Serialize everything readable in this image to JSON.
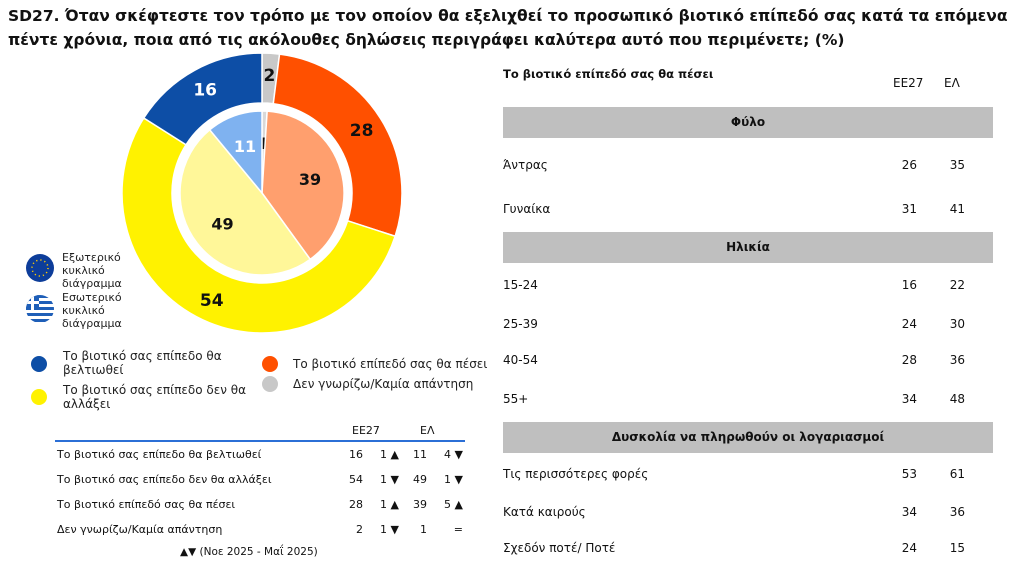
{
  "title": "SD27. Όταν σκέφτεστε τον τρόπο με τον οποίον θα εξελιχθεί το προσωπικό βιοτικό επίπεδό σας κατά τα επόμενα πέντε χρόνια, ποια από τις ακόλουθες δηλώσεις περιγράφει καλύτερα αυτό που περιμένετε; (%)",
  "chart_data": {
    "type": "pie",
    "categories": [
      "Το βιοτικό σας επίπεδο θα βελτιωθεί",
      "Το βιοτικό σας επίπεδο δεν θα αλλάξει",
      "Το βιοτικό επίπεδό σας θα πέσει",
      "Δεν γνωρίζω/Καμία απάντηση"
    ],
    "colors": [
      "#0d4ea6",
      "#fff200",
      "#ff5000",
      "#c8c8c8"
    ],
    "inner_colors": [
      "#7fb2f0",
      "#fff799",
      "#ff9f6e",
      "#d9d9d9"
    ],
    "series": [
      {
        "name": "Εξωτερικό κυκλικό διάγραμμα",
        "values": [
          16,
          54,
          28,
          2
        ]
      },
      {
        "name": "Εσωτερικό κυκλικό διάγραμμα",
        "values": [
          11,
          49,
          39,
          1
        ]
      }
    ],
    "legend": "left"
  },
  "legend_flags": [
    "Εξωτερικό κυκλικό διάγραμμα",
    "Εσωτερικό κυκλικό διάγραμμα"
  ],
  "bottom_table": {
    "headers": [
      "ΕΕ27",
      "ΕΛ"
    ],
    "rows": [
      {
        "label": "Το βιοτικό σας επίπεδο θα βελτιωθεί",
        "eu": "16",
        "eu_ch": "1 ▲",
        "el": "11",
        "el_ch": "4 ▼"
      },
      {
        "label": "Το βιοτικό σας επίπεδο δεν θα αλλάξει",
        "eu": "54",
        "eu_ch": "1 ▼",
        "el": "49",
        "el_ch": "1 ▼"
      },
      {
        "label": "Το βιοτικό επίπεδό σας θα πέσει",
        "eu": "28",
        "eu_ch": "1 ▲",
        "el": "39",
        "el_ch": "5 ▲"
      },
      {
        "label": "Δεν γνωρίζω/Καμία απάντηση",
        "eu": "2",
        "eu_ch": "1 ▼",
        "el": "1",
        "el_ch": "="
      }
    ],
    "footnote": "▲▼ (Νοε 2025 - Μαΐ 2025)"
  },
  "right": {
    "heading": "Το βιοτικό επίπεδό σας θα πέσει",
    "col_eu": "ΕΕ27",
    "col_el": "ΕΛ",
    "sections": [
      {
        "title": "Φύλο",
        "rows": [
          {
            "label": "Άντρας",
            "eu": "26",
            "el": "35"
          },
          {
            "label": "Γυναίκα",
            "eu": "31",
            "el": "41"
          }
        ]
      },
      {
        "title": "Ηλικία",
        "rows": [
          {
            "label": "15-24",
            "eu": "16",
            "el": "22"
          },
          {
            "label": "25-39",
            "eu": "24",
            "el": "30"
          },
          {
            "label": "40-54",
            "eu": "28",
            "el": "36"
          },
          {
            "label": "55+",
            "eu": "34",
            "el": "48"
          }
        ]
      },
      {
        "title": "Δυσκολία να πληρωθούν οι λογαριασμοί",
        "rows": [
          {
            "label": "Τις περισσότερες φορές",
            "eu": "53",
            "el": "61"
          },
          {
            "label": "Κατά καιρούς",
            "eu": "34",
            "el": "36"
          },
          {
            "label": "Σχεδόν ποτέ/ Ποτέ",
            "eu": "24",
            "el": "15"
          }
        ]
      }
    ]
  }
}
